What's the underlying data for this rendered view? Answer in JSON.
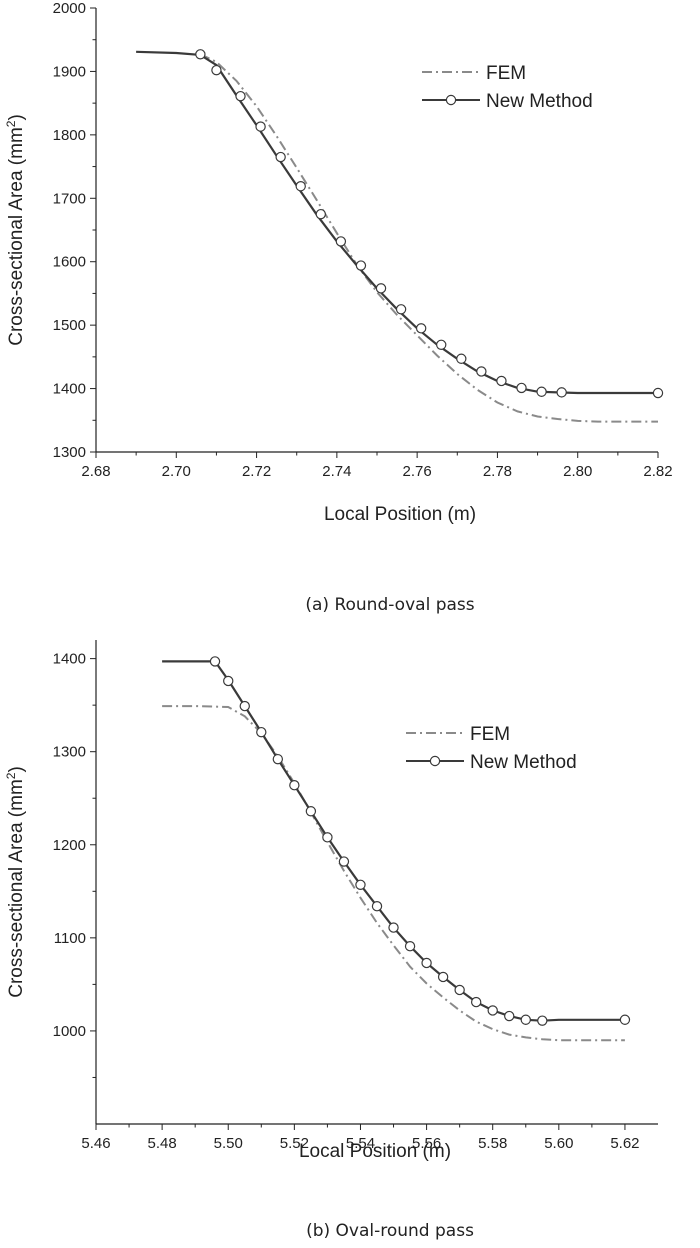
{
  "chart_data": [
    {
      "type": "line",
      "caption": "(a)  Round-oval pass",
      "xlabel": "Local Position (m)",
      "ylabel_prefix": "Cross-sectional Area (mm",
      "ylabel_sup": "2",
      "ylabel_suffix": ")",
      "xlim": [
        2.68,
        2.82
      ],
      "ylim": [
        1300,
        2000
      ],
      "xticks": [
        2.68,
        2.7,
        2.72,
        2.74,
        2.76,
        2.78,
        2.8,
        2.82
      ],
      "xtick_labels": [
        "2.68",
        "2.70",
        "2.72",
        "2.74",
        "2.76",
        "2.78",
        "2.80",
        "2.82"
      ],
      "yticks": [
        1300,
        1400,
        1500,
        1600,
        1700,
        1800,
        1900,
        2000
      ],
      "ytick_labels": [
        "1300",
        "1400",
        "1500",
        "1600",
        "1700",
        "1800",
        "1900",
        "2000"
      ],
      "legend_position": "top-right",
      "series": [
        {
          "name": "FEM",
          "style": "dash-dot",
          "color": "#8a8a8a",
          "x": [
            2.706,
            2.71,
            2.715,
            2.72,
            2.725,
            2.73,
            2.735,
            2.74,
            2.745,
            2.75,
            2.755,
            2.76,
            2.765,
            2.77,
            2.775,
            2.78,
            2.785,
            2.79,
            2.795,
            2.8,
            2.805,
            2.81,
            2.815,
            2.82
          ],
          "y": [
            1927,
            1915,
            1885,
            1845,
            1798,
            1748,
            1697,
            1645,
            1595,
            1552,
            1516,
            1484,
            1452,
            1423,
            1398,
            1378,
            1364,
            1356,
            1352,
            1349,
            1348,
            1348,
            1348,
            1348
          ]
        },
        {
          "name": "New Method",
          "style": "solid-circle",
          "color": "#3a3a3a",
          "x": [
            2.69,
            2.7,
            2.706,
            2.71,
            2.715,
            2.72,
            2.725,
            2.73,
            2.735,
            2.74,
            2.745,
            2.75,
            2.755,
            2.76,
            2.765,
            2.77,
            2.775,
            2.78,
            2.785,
            2.79,
            2.795,
            2.8,
            2.81,
            2.82
          ],
          "y": [
            1931,
            1929,
            1926,
            1910,
            1862,
            1815,
            1767,
            1720,
            1674,
            1632,
            1594,
            1558,
            1525,
            1495,
            1469,
            1447,
            1427,
            1412,
            1401,
            1395,
            1394,
            1393,
            1393,
            1393
          ],
          "markers_x": [
            2.706,
            2.71,
            2.716,
            2.721,
            2.726,
            2.731,
            2.736,
            2.741,
            2.746,
            2.751,
            2.756,
            2.761,
            2.766,
            2.771,
            2.776,
            2.781,
            2.786,
            2.791,
            2.796,
            2.82
          ],
          "markers_y": [
            1927,
            1902,
            1861,
            1813,
            1765,
            1719,
            1675,
            1632,
            1594,
            1558,
            1525,
            1495,
            1469,
            1447,
            1427,
            1412,
            1401,
            1395,
            1394,
            1393
          ]
        }
      ]
    },
    {
      "type": "line",
      "caption": "(b)  Oval-round pass",
      "xlabel": "Local Position (m)",
      "ylabel_prefix": "Cross-sectional Area (mm",
      "ylabel_sup": "2",
      "ylabel_suffix": ")",
      "xlim": [
        5.46,
        5.63
      ],
      "ylim": [
        900,
        1420
      ],
      "xticks": [
        5.46,
        5.48,
        5.5,
        5.52,
        5.54,
        5.56,
        5.58,
        5.6,
        5.62
      ],
      "xtick_labels": [
        "5.46",
        "5.48",
        "5.50",
        "5.52",
        "5.54",
        "5.56",
        "5.58",
        "5.60",
        "5.62"
      ],
      "yticks": [
        1000,
        1100,
        1200,
        1300,
        1400
      ],
      "ytick_labels": [
        "1000",
        "1100",
        "1200",
        "1300",
        "1400"
      ],
      "legend_position": "top-right",
      "series": [
        {
          "name": "FEM",
          "style": "dash-dot",
          "color": "#8a8a8a",
          "x": [
            5.48,
            5.49,
            5.5,
            5.505,
            5.51,
            5.515,
            5.52,
            5.525,
            5.53,
            5.535,
            5.54,
            5.545,
            5.55,
            5.555,
            5.56,
            5.565,
            5.57,
            5.575,
            5.58,
            5.585,
            5.59,
            5.595,
            5.6,
            5.61,
            5.62
          ],
          "y": [
            1349,
            1349,
            1348,
            1338,
            1320,
            1295,
            1266,
            1235,
            1203,
            1172,
            1143,
            1116,
            1092,
            1069,
            1051,
            1036,
            1022,
            1010,
            1002,
            996,
            993,
            991,
            990,
            990,
            990
          ]
        },
        {
          "name": "New Method",
          "style": "solid-circle",
          "color": "#3a3a3a",
          "x": [
            5.48,
            5.49,
            5.496,
            5.5,
            5.505,
            5.51,
            5.515,
            5.52,
            5.525,
            5.53,
            5.535,
            5.54,
            5.545,
            5.55,
            5.555,
            5.56,
            5.565,
            5.57,
            5.575,
            5.58,
            5.585,
            5.59,
            5.595,
            5.6,
            5.61,
            5.62
          ],
          "y": [
            1397,
            1397,
            1397,
            1377,
            1349,
            1321,
            1292,
            1264,
            1236,
            1208,
            1182,
            1157,
            1134,
            1111,
            1091,
            1073,
            1058,
            1044,
            1031,
            1022,
            1016,
            1012,
            1011,
            1012,
            1012,
            1012
          ],
          "markers_x": [
            5.496,
            5.5,
            5.505,
            5.51,
            5.515,
            5.52,
            5.525,
            5.53,
            5.535,
            5.54,
            5.545,
            5.55,
            5.555,
            5.56,
            5.565,
            5.57,
            5.575,
            5.58,
            5.585,
            5.59,
            5.595,
            5.62
          ],
          "markers_y": [
            1397,
            1376,
            1349,
            1321,
            1292,
            1264,
            1236,
            1208,
            1182,
            1157,
            1134,
            1111,
            1091,
            1073,
            1058,
            1044,
            1031,
            1022,
            1016,
            1012,
            1011,
            1012
          ]
        }
      ]
    }
  ]
}
